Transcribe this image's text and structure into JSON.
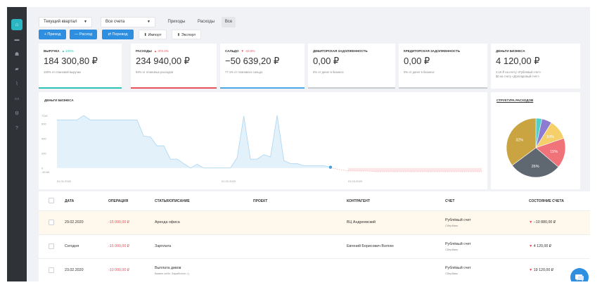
{
  "sidebar": {
    "items": [
      {
        "icon": "home-icon",
        "glyph": "⌂",
        "active": true
      },
      {
        "icon": "briefcase-icon",
        "glyph": "▬",
        "active": false
      },
      {
        "icon": "users-icon",
        "glyph": "☗",
        "active": false
      },
      {
        "icon": "book-icon",
        "glyph": "▰",
        "active": false
      },
      {
        "icon": "chart-icon",
        "glyph": "⌇",
        "active": false
      },
      {
        "icon": "wallet-icon",
        "glyph": "▭",
        "active": false
      },
      {
        "icon": "settings-icon",
        "glyph": "⚙",
        "active": false
      },
      {
        "icon": "help-icon",
        "glyph": "?",
        "active": false
      }
    ]
  },
  "toolbar": {
    "period": "Текущий квартал",
    "accounts": "Все счета",
    "filters": [
      "Приходы",
      "Расходы",
      "Все"
    ],
    "actions": {
      "income": "+ Приход",
      "expense": "— Расход",
      "transfer": "⇄ Перевод",
      "import": "⬆ Импорт",
      "export": "⬇ Экспорт"
    }
  },
  "cards": [
    {
      "label": "Выручка",
      "change": "▲ 100%",
      "value": "184 300,80 ₽",
      "sub": "100% от плановой выручки",
      "bar_color": "#2bc4b4",
      "change_color": "#2bc4b4"
    },
    {
      "label": "Расходы",
      "change": "▲ 372.4%",
      "value": "234 940,00 ₽",
      "sub": "94% от плановых расходов",
      "bar_color": "#e8505b",
      "change_color": "#e8505b"
    },
    {
      "label": "Сальдо",
      "change": "▼ -44.5%",
      "value": "−50 639,20 ₽",
      "sub": "77.1% от планового сальдо",
      "bar_color": "#48a9e6",
      "change_color": "#e8505b"
    },
    {
      "label": "Дебиторская задолженность",
      "change": "",
      "value": "0,00 ₽",
      "sub": "0% от денег в бизнесе",
      "bar_color": "#c9ccd1",
      "change_color": "#888"
    },
    {
      "label": "Кредиторская задолженность",
      "change": "",
      "value": "0,00 ₽",
      "sub": "0% от денег в бизнесе",
      "bar_color": "#c9ccd1",
      "change_color": "#888"
    },
    {
      "label": "Деньги бизнеса",
      "change": "",
      "value": "4 120,00 ₽",
      "sub": "4.1К ₽ на счету «Рублевый счет»",
      "sub2": "$0 на счету «Долларовый счет»",
      "bar_color": "#ffffff",
      "change_color": "#888"
    }
  ],
  "money_chart": {
    "title": "Деньги бизнеса",
    "chart_data": {
      "type": "area",
      "y_ticks": [
        "711К",
        "600",
        "400",
        "200",
        "0",
        "-50.6К"
      ],
      "x_ticks": [
        "01.01.2020",
        "01.02.2020",
        "01.03.2020"
      ],
      "series": [
        {
          "values": [
            650,
            650,
            650,
            650,
            710,
            650,
            650,
            650,
            650,
            650,
            650,
            650,
            650,
            430,
            420,
            300,
            300,
            120,
            120,
            60,
            0,
            50,
            0,
            0,
            0,
            0,
            0,
            140,
            700,
            120,
            120,
            180,
            150,
            710,
            100,
            60,
            60,
            30,
            30,
            30,
            30,
            10
          ]
        },
        {
          "values": [
            -40,
            -40,
            -40,
            -50,
            -50,
            -50,
            -50,
            -50,
            -50,
            -50,
            -50,
            -50,
            -50,
            -50,
            -50,
            -50
          ]
        }
      ]
    }
  },
  "expense_structure": {
    "title": "Структура расходов",
    "chart_data": {
      "type": "pie",
      "slices": [
        {
          "label": "32%",
          "value": 32,
          "color": "#c9a440"
        },
        {
          "label": "26%",
          "value": 26,
          "color": "#5f6871"
        },
        {
          "label": "15%",
          "value": 15,
          "color": "#f0737a"
        },
        {
          "label": "10%",
          "value": 10,
          "color": "#f5cf6a"
        },
        {
          "label": "",
          "value": 5,
          "color": "#8c7bd0"
        },
        {
          "label": "",
          "value": 3,
          "color": "#4fd1c5"
        }
      ]
    }
  },
  "table": {
    "headers": [
      "Дата",
      "Операция",
      "Статья/описание",
      "Проект",
      "Контрагент",
      "Счет",
      "Состояние счета"
    ],
    "rows": [
      {
        "date": "29.02.2020",
        "amount": "-15 000,00 ₽",
        "desc": "Аренда офиса",
        "desc_sub": "",
        "counterparty": "ВЦ Андреевский",
        "account": "Рублёвый счет",
        "bank": "Сбербанк",
        "balance": "▼ −10 880,00 ₽",
        "highlight": true
      },
      {
        "date": "Сегодня",
        "amount": "-15 000,00 ₽",
        "desc": "Зарплата",
        "desc_sub": "",
        "counterparty": "Евгений Борисович Волгин",
        "account": "Рублёвый счет",
        "bank": "Сбербанк",
        "balance": "▼ 4 120,00 ₽",
        "highlight": false
      },
      {
        "date": "23.02.2020",
        "amount": "-10 000,00 ₽",
        "desc": "Выплата дивов",
        "desc_sub": "Вывел себе. Заработал =)",
        "counterparty": "",
        "account": "Рублёвый счет",
        "bank": "Сбербанк",
        "balance": "▼ 19 120,00 ₽",
        "highlight": false
      }
    ]
  }
}
